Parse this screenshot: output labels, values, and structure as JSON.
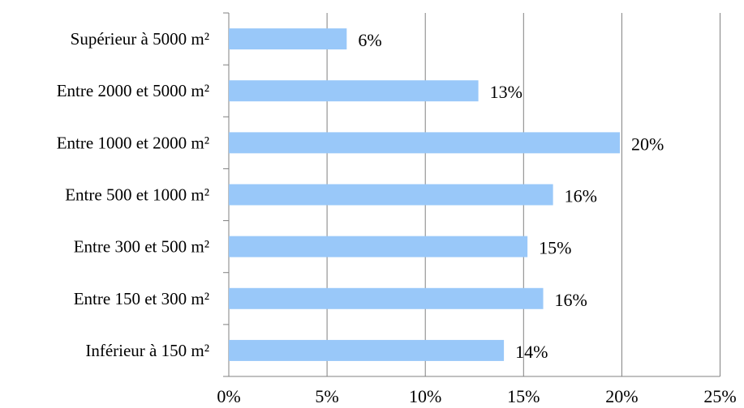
{
  "chart_data": {
    "type": "bar",
    "orientation": "horizontal",
    "categories": [
      "Supérieur à 5000 m²",
      "Entre  2000 et 5000 m²",
      "Entre  1000 et 2000 m²",
      "Entre  500 et 1000 m²",
      "Entre  300 et 500 m²",
      "Entre  150 et 300 m²",
      "Inférieur à 150 m²"
    ],
    "values": [
      6,
      12.7,
      19.9,
      16.5,
      15.2,
      16,
      14
    ],
    "value_labels": [
      "6%",
      "13%",
      "20%",
      "16%",
      "15%",
      "16%",
      "14%"
    ],
    "xlim": [
      0,
      25
    ],
    "x_ticks": [
      "0%",
      "5%",
      "10%",
      "15%",
      "20%",
      "25%"
    ],
    "grid": "vertical",
    "legend": "none",
    "title": "",
    "xlabel": "",
    "ylabel": "",
    "colors": {
      "bar": "#99c8f9",
      "grid": "#808080"
    }
  }
}
